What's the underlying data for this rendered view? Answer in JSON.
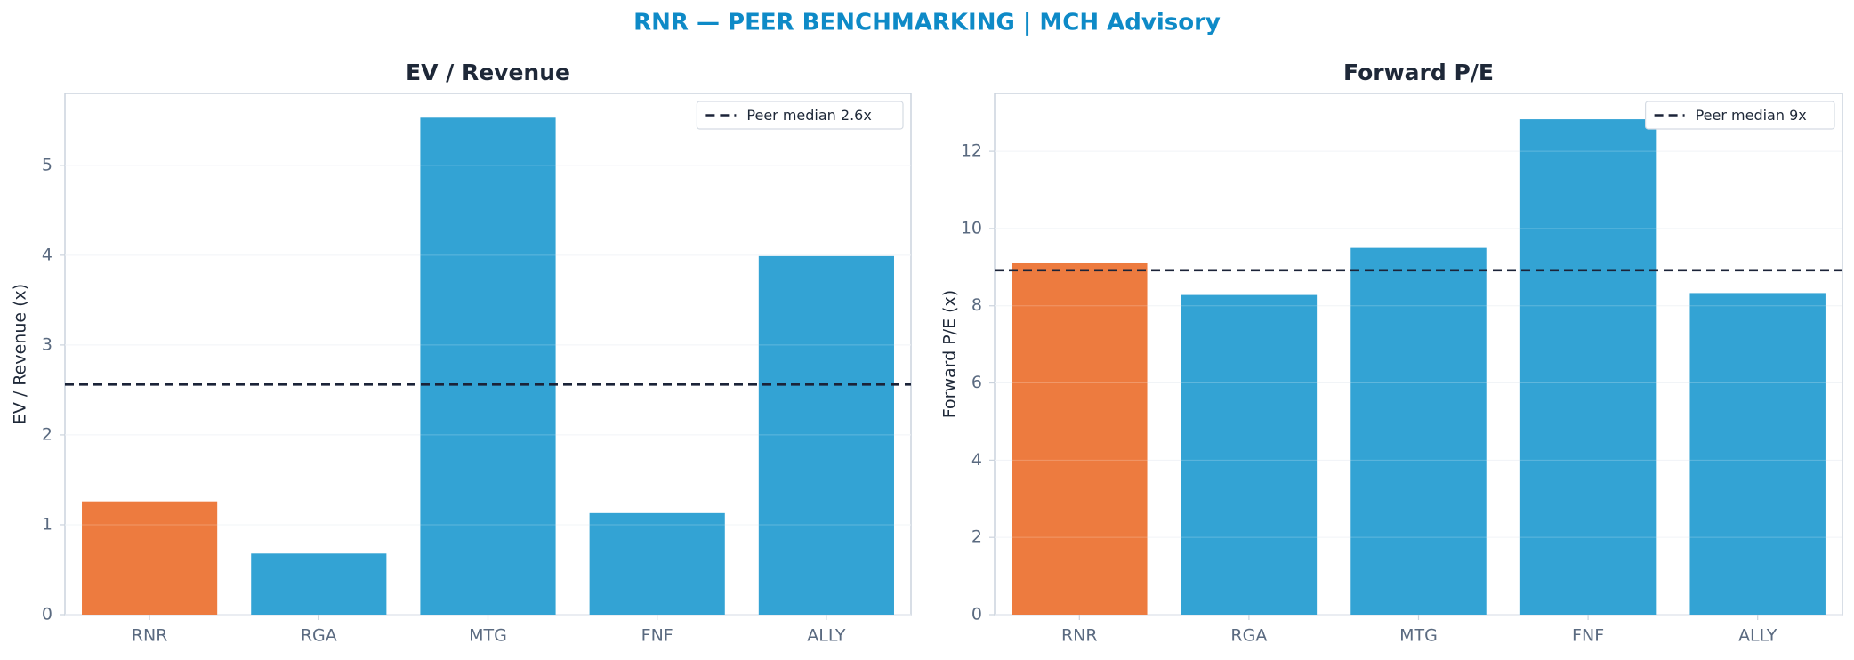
{
  "suptitle": "RNR — PEER BENCHMARKING | MCH Advisory",
  "colors": {
    "title": "#0E8AC7",
    "subject": "#ED7B3F",
    "peer": "#33A3D4",
    "median": "#1B2338",
    "axis_text": "#5A6A80",
    "heading": "#1E2838"
  },
  "chart_data": [
    {
      "type": "bar",
      "title": "EV / Revenue",
      "ylabel": "EV / Revenue (x)",
      "categories": [
        "RNR",
        "RGA",
        "MTG",
        "FNF",
        "ALLY"
      ],
      "values": [
        1.26,
        0.68,
        5.53,
        1.13,
        3.99
      ],
      "highlight": "RNR",
      "ylim": [
        0,
        5.8
      ],
      "yticks": [
        0,
        1,
        2,
        3,
        4,
        5
      ],
      "reference_line": {
        "value": 2.56,
        "label": "Peer median 2.6x",
        "style": "dashed"
      },
      "legend": "top-right",
      "grid": true
    },
    {
      "type": "bar",
      "title": "Forward P/E",
      "ylabel": "Forward P/E (x)",
      "categories": [
        "RNR",
        "RGA",
        "MTG",
        "FNF",
        "ALLY"
      ],
      "values": [
        9.1,
        8.28,
        9.5,
        12.83,
        8.33
      ],
      "highlight": "RNR",
      "ylim": [
        0,
        13.5
      ],
      "yticks": [
        0,
        2,
        4,
        6,
        8,
        10,
        12
      ],
      "reference_line": {
        "value": 8.92,
        "label": "Peer median 9x",
        "style": "dashed"
      },
      "legend": "top-right",
      "grid": true
    }
  ]
}
